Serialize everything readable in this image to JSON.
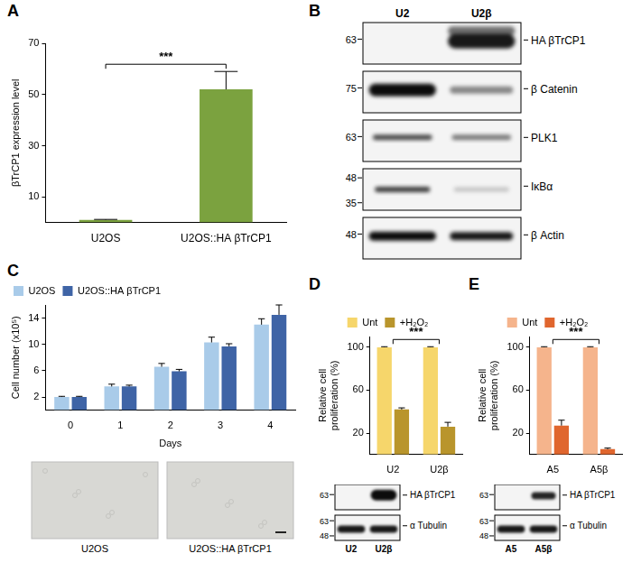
{
  "figure": {
    "panel_letters": [
      "A",
      "B",
      "C",
      "D",
      "E"
    ]
  },
  "chart_data": [
    {
      "type": "bar",
      "ylabel": "βTrCP1 expression level",
      "categories": [
        "U2OS",
        "U2OS::HA βTrCP1"
      ],
      "values": [
        1,
        52
      ],
      "errors": [
        0.2,
        7
      ],
      "color": "#7ba23f",
      "ylim": [
        0,
        70
      ],
      "yticks": [
        10,
        30,
        50,
        70
      ],
      "grid": false,
      "annotations": [
        {
          "text": "***",
          "categories": [
            "U2OS",
            "U2OS::HA βTrCP1"
          ]
        }
      ]
    },
    {
      "type": "bar",
      "ylabel": "Cell number (x10⁵)",
      "xlabel": "Days",
      "categories": [
        "0",
        "1",
        "2",
        "3",
        "4"
      ],
      "series": [
        {
          "name": "U2OS",
          "color": "#a9cbe9",
          "values": [
            2,
            3.6,
            6.6,
            10.3,
            13
          ],
          "errors": [
            0.1,
            0.35,
            0.5,
            0.8,
            0.9
          ]
        },
        {
          "name": "U2OS::HA βTrCP1",
          "color": "#3f64a6",
          "values": [
            2,
            3.6,
            5.9,
            9.7,
            14.5
          ],
          "errors": [
            0.1,
            0.2,
            0.3,
            0.4,
            1.5
          ]
        }
      ],
      "ylim": [
        0,
        16
      ],
      "yticks": [
        2,
        6,
        10,
        14
      ],
      "grid": false,
      "legend": "top"
    },
    {
      "type": "bar",
      "ylabel": "Relative cell proliferation (%)",
      "categories": [
        "U2",
        "U2β"
      ],
      "series": [
        {
          "name": "Unt",
          "color": "#f6d66b",
          "values": [
            100,
            100
          ],
          "errors": [
            0.5,
            0.5
          ]
        },
        {
          "name": "+H₂O₂",
          "color": "#b9952c",
          "values": [
            42,
            26
          ],
          "errors": [
            1.5,
            4
          ]
        }
      ],
      "ylim": [
        0,
        110
      ],
      "yticks": [
        20,
        60,
        100
      ],
      "grid": false,
      "legend": "top",
      "annotations": [
        {
          "text": "***",
          "categories": [
            "U2",
            "U2β"
          ]
        }
      ]
    },
    {
      "type": "bar",
      "ylabel": "Relative cell proliferation (%)",
      "categories": [
        "A5",
        "A5β"
      ],
      "series": [
        {
          "name": "Unt",
          "color": "#f5b48c",
          "values": [
            100,
            100
          ],
          "errors": [
            0.5,
            0.5
          ]
        },
        {
          "name": "+H₂O₂",
          "color": "#e0662e",
          "values": [
            27,
            5
          ],
          "errors": [
            5,
            1
          ]
        }
      ],
      "ylim": [
        0,
        110
      ],
      "yticks": [
        20,
        60,
        100
      ],
      "grid": false,
      "legend": "top",
      "annotations": [
        {
          "text": "***",
          "categories": [
            "A5",
            "A5β"
          ]
        }
      ]
    }
  ],
  "blot_B": {
    "lanes": [
      "U2",
      "U2β"
    ],
    "rows": [
      {
        "label": "HA βTrCP1",
        "markers": [
          63
        ]
      },
      {
        "label": "β Catenin",
        "markers": [
          75
        ]
      },
      {
        "label": "PLK1",
        "markers": [
          63
        ]
      },
      {
        "label": "IκBα",
        "markers": [
          48,
          35
        ]
      },
      {
        "label": "β Actin",
        "markers": [
          48
        ]
      }
    ]
  },
  "micrographs_C": {
    "labels": [
      "U2OS",
      "U2OS::HA βTrCP1"
    ]
  },
  "blot_D": {
    "lanes": [
      "U2",
      "U2β"
    ],
    "rows": [
      {
        "label": "HA βTrCP1",
        "markers": [
          63
        ]
      },
      {
        "label": "α Tubulin",
        "markers": [
          63,
          48
        ]
      }
    ]
  },
  "blot_E": {
    "lanes": [
      "A5",
      "A5β"
    ],
    "rows": [
      {
        "label": "HA βTrCP1",
        "markers": [
          63
        ]
      },
      {
        "label": "α Tubulin",
        "markers": [
          63,
          48
        ]
      }
    ]
  }
}
